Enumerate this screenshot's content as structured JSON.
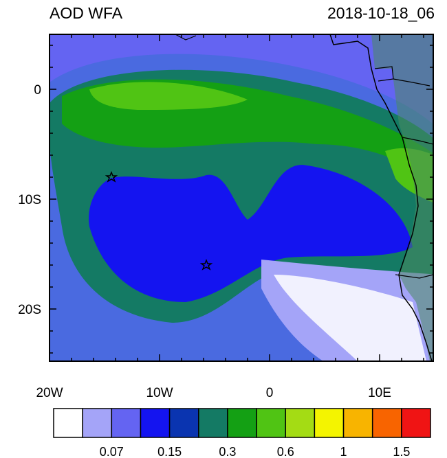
{
  "header": {
    "title": "AOD WFA",
    "timestamp": "2018-10-18_06"
  },
  "axes": {
    "x_labels": [
      "20W",
      "10W",
      "0",
      "10E"
    ],
    "y_labels": [
      "0",
      "10S",
      "20S"
    ]
  },
  "colorbar": {
    "colors": [
      "#ffffff",
      "#a4a4f8",
      "#6464f2",
      "#1414f0",
      "#0a34b0",
      "#147a64",
      "#14a014",
      "#50c414",
      "#a4dc14",
      "#f4f400",
      "#f8b400",
      "#f86400",
      "#f01414"
    ],
    "labels": [
      "0.07",
      "0.15",
      "0.3",
      "0.6",
      "1",
      "1.5"
    ]
  }
}
